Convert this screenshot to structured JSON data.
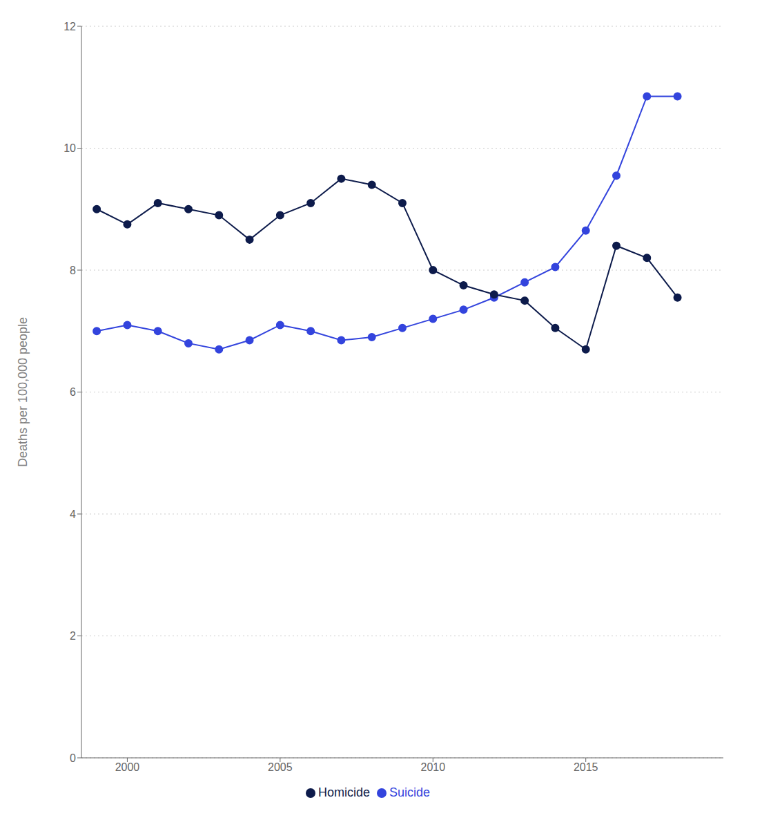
{
  "chart_data": {
    "type": "line",
    "ylabel": "Deaths per 100,000 people",
    "x": [
      1999,
      2000,
      2001,
      2002,
      2003,
      2004,
      2005,
      2006,
      2007,
      2008,
      2009,
      2010,
      2011,
      2012,
      2013,
      2014,
      2015,
      2016,
      2017,
      2018
    ],
    "series": [
      {
        "name": "Suicide",
        "color": "#3344dd",
        "values": [
          7.0,
          7.1,
          7.0,
          6.8,
          6.7,
          6.85,
          7.1,
          7.0,
          6.85,
          6.9,
          7.05,
          7.2,
          7.35,
          7.55,
          7.8,
          8.05,
          8.65,
          9.55,
          10.85,
          10.85
        ]
      },
      {
        "name": "Homicide",
        "color": "#0d1b4b",
        "values": [
          9.0,
          8.75,
          9.1,
          9.0,
          8.9,
          8.5,
          8.9,
          9.1,
          9.5,
          9.4,
          9.1,
          8.0,
          7.75,
          7.6,
          7.5,
          7.05,
          6.7,
          8.4,
          8.2,
          7.55
        ]
      }
    ],
    "xlim": [
      1998.5,
      2019.5
    ],
    "xticks": [
      2000,
      2005,
      2010,
      2015
    ],
    "ylim": [
      0,
      12
    ],
    "yticks": [
      0,
      2,
      4,
      6,
      8,
      10,
      12
    ],
    "grid": "y",
    "legend": "bottom",
    "marker": "circle"
  }
}
